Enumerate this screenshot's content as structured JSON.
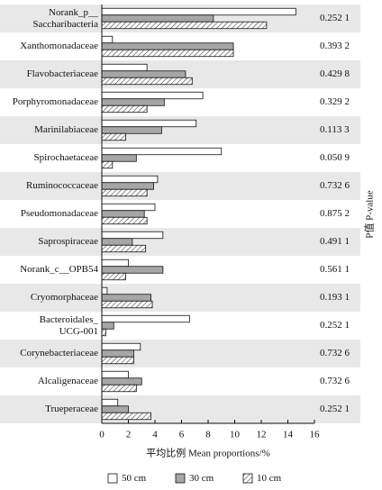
{
  "chart_data": {
    "type": "hbar",
    "categories": [
      "Norank_p__\nSaccharibacteria",
      "Xanthomonadaceae",
      "Flavobacteriaceae",
      "Porphyromonadaceae",
      "Marinilabiaceae",
      "Spirochaetaceae",
      "Ruminococcaceae",
      "Pseudomonadaceae",
      "Saprospiraceae",
      "Norank_c__OPB54",
      "Cryomorphaceae",
      "Bacteroidales_\nUCG-001",
      "Corynebacteriaceae",
      "Alcaligenaceae",
      "Trueperaceae"
    ],
    "p_values": [
      "0.252 1",
      "0.393 2",
      "0.429 8",
      "0.329 2",
      "0.113 3",
      "0.050 9",
      "0.732 6",
      "0.875 2",
      "0.491 1",
      "0.561 1",
      "0.193 1",
      "0.252 1",
      "0.732 6",
      "0.732 6",
      "0.252 1"
    ],
    "p_label": "P值 P-value",
    "x_label": "平均比例 Mean proportions/%",
    "xlim": [
      0,
      16
    ],
    "xticks": [
      0,
      2,
      4,
      6,
      8,
      10,
      12,
      14,
      16
    ],
    "series": [
      {
        "name": "50 cm",
        "color": "#ffffff",
        "hatch": false,
        "values": [
          14.6,
          0.8,
          3.4,
          7.6,
          7.1,
          9.0,
          4.2,
          4.0,
          4.6,
          2.0,
          0.4,
          6.6,
          2.9,
          2.0,
          1.2
        ]
      },
      {
        "name": "30 cm",
        "color": "#a6a6a6",
        "hatch": false,
        "values": [
          8.4,
          9.9,
          6.3,
          4.7,
          4.5,
          2.6,
          3.9,
          3.2,
          2.3,
          4.6,
          3.7,
          0.9,
          2.4,
          3.0,
          2.0
        ]
      },
      {
        "name": "10 cm",
        "color": "#ffffff",
        "hatch": true,
        "values": [
          12.4,
          9.9,
          6.8,
          3.4,
          1.8,
          0.8,
          3.4,
          3.4,
          3.3,
          1.8,
          3.8,
          0.3,
          2.4,
          2.6,
          3.7
        ]
      }
    ]
  }
}
